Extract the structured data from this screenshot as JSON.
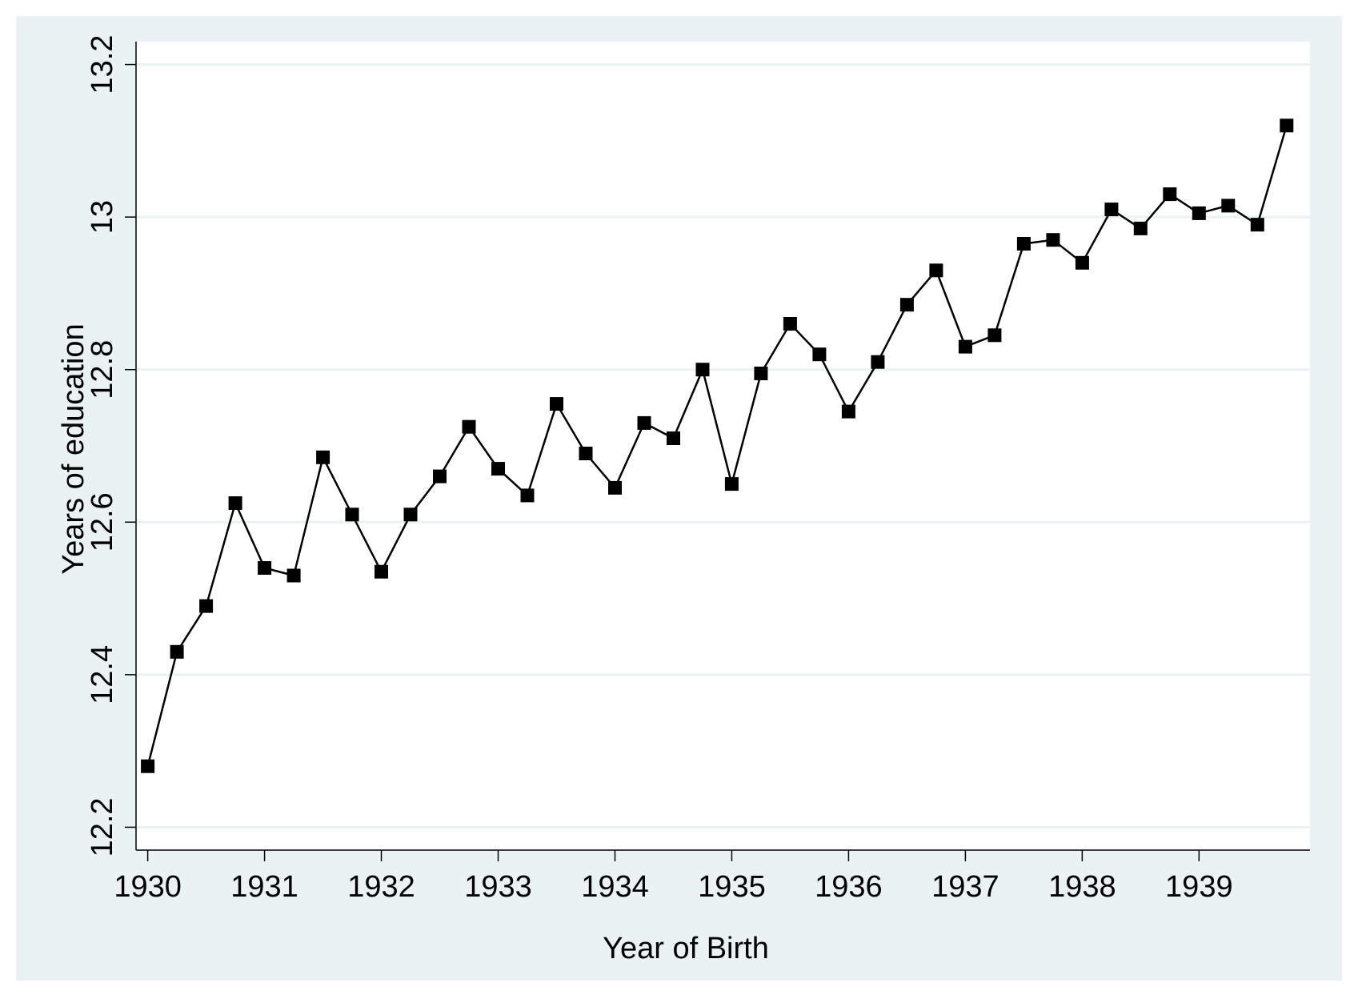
{
  "chart_data": {
    "type": "line",
    "title": "",
    "xlabel": "Year of Birth",
    "ylabel": "Years of education",
    "xlim": [
      1929.9,
      1939.95
    ],
    "ylim": [
      12.17,
      13.23
    ],
    "x_ticks": [
      1930,
      1931,
      1932,
      1933,
      1934,
      1935,
      1936,
      1937,
      1938,
      1939
    ],
    "x_tick_labels": [
      "1930",
      "1931",
      "1932",
      "1933",
      "1934",
      "1935",
      "1936",
      "1937",
      "1938",
      "1939"
    ],
    "y_ticks": [
      12.2,
      12.4,
      12.6,
      12.8,
      13,
      13.2
    ],
    "y_tick_labels": [
      "12.2",
      "12.4",
      "12.6",
      "12.8",
      "13",
      "13.2"
    ],
    "grid": true,
    "marker": "square",
    "colors": {
      "outer_background": "#eaf2f3",
      "plot_background": "#ffffff",
      "grid": "#eaf2f3",
      "series": "#000000"
    },
    "series": [
      {
        "name": "",
        "x": [
          1930,
          1930.25,
          1930.5,
          1930.75,
          1931,
          1931.25,
          1931.5,
          1931.75,
          1932,
          1932.25,
          1932.5,
          1932.75,
          1933,
          1933.25,
          1933.5,
          1933.75,
          1934,
          1934.25,
          1934.5,
          1934.75,
          1935,
          1935.25,
          1935.5,
          1935.75,
          1936,
          1936.25,
          1936.5,
          1936.75,
          1937,
          1937.25,
          1937.5,
          1937.75,
          1938,
          1938.25,
          1938.5,
          1938.75,
          1939,
          1939.25,
          1939.5,
          1939.75
        ],
        "values": [
          12.28,
          12.43,
          12.49,
          12.625,
          12.54,
          12.53,
          12.685,
          12.61,
          12.535,
          12.61,
          12.66,
          12.725,
          12.67,
          12.635,
          12.755,
          12.69,
          12.645,
          12.73,
          12.71,
          12.8,
          12.65,
          12.795,
          12.86,
          12.82,
          12.745,
          12.81,
          12.885,
          12.93,
          12.83,
          12.845,
          12.965,
          12.97,
          12.94,
          13.01,
          12.985,
          13.03,
          13.005,
          13.015,
          12.99,
          13.12
        ]
      }
    ]
  }
}
